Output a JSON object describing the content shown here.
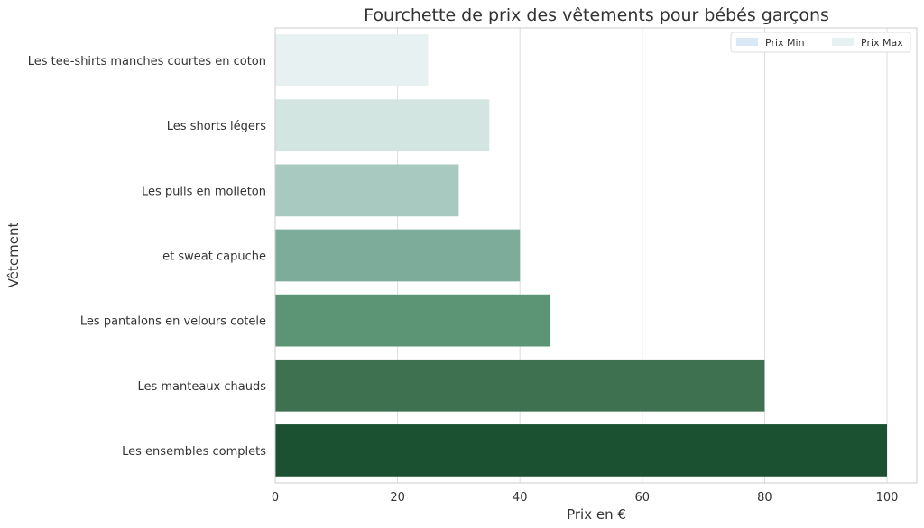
{
  "chart_data": {
    "type": "bar",
    "orientation": "horizontal",
    "title": "Fourchette de prix des vêtements pour bébés garçons",
    "xlabel": "Prix en €",
    "ylabel": "Vêtement",
    "xlim": [
      0,
      105
    ],
    "xticks": [
      0,
      20,
      40,
      60,
      80,
      100
    ],
    "grid": "vertical",
    "categories": [
      "Les tee-shirts manches courtes en coton",
      "Les shorts légers",
      "Les pulls en molleton",
      "et sweat capuche",
      "Les pantalons en velours cotele",
      "Les manteaux chauds",
      "Les ensembles complets"
    ],
    "series": [
      {
        "name": "Prix Min",
        "values": [
          0,
          0,
          0,
          0,
          0,
          0,
          0
        ],
        "color": "#dbe9f6"
      },
      {
        "name": "Prix Max",
        "values": [
          25,
          35,
          30,
          40,
          45,
          80,
          100
        ],
        "colors": [
          "#e8f1f2",
          "#d3e5e1",
          "#a8c9bf",
          "#7eac9a",
          "#5c9476",
          "#3e7150",
          "#1b5131"
        ]
      }
    ],
    "legend": {
      "position": "top-right",
      "entries": [
        {
          "label": "Prix Min",
          "color": "#dbe9f6"
        },
        {
          "label": "Prix Max",
          "color": "#e8f1f2"
        }
      ]
    }
  }
}
